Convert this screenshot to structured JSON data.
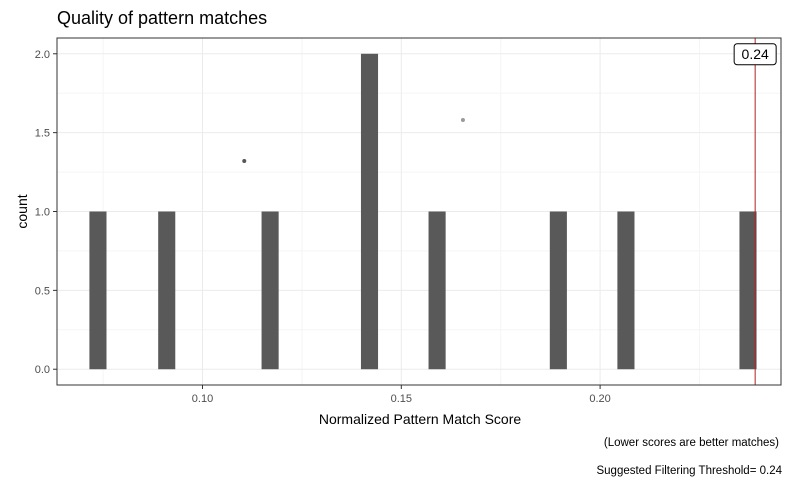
{
  "chart_data": {
    "type": "bar",
    "title": "Quality of pattern matches",
    "xlabel": "Normalized Pattern Match Score",
    "ylabel": "count",
    "xlim": [
      0.0634,
      0.2455
    ],
    "ylim": [
      -0.1,
      2.1
    ],
    "x_ticks": [
      0.1,
      0.15,
      0.2
    ],
    "x_tick_labels": [
      "0.10",
      "0.15",
      "0.20"
    ],
    "y_ticks": [
      0.0,
      0.5,
      1.0,
      1.5,
      2.0
    ],
    "y_tick_labels": [
      "0.0",
      "0.5",
      "1.0",
      "1.5",
      "2.0"
    ],
    "bar_width": 0.0043,
    "bars": [
      {
        "x": 0.0737,
        "count": 1
      },
      {
        "x": 0.091,
        "count": 1
      },
      {
        "x": 0.117,
        "count": 1
      },
      {
        "x": 0.142,
        "count": 2
      },
      {
        "x": 0.159,
        "count": 1
      },
      {
        "x": 0.1895,
        "count": 1
      },
      {
        "x": 0.2065,
        "count": 1
      },
      {
        "x": 0.2372,
        "count": 1
      }
    ],
    "points": [
      {
        "x": 0.1105,
        "y": 1.32
      },
      {
        "x": 0.1655,
        "y": 1.58
      }
    ],
    "threshold": {
      "x": 0.239,
      "label": "0.24",
      "color": "#b22222"
    },
    "grid": true,
    "bar_color": "#595959",
    "captions": [
      "(Lower scores are better matches)",
      "Suggested Filtering Threshold= 0.24"
    ]
  }
}
